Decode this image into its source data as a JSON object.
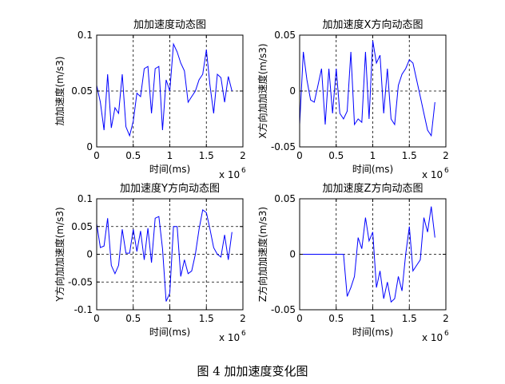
{
  "figure_caption": "图 4  加加速度变化图",
  "colors": {
    "line": "#0000ff",
    "axis": "#000000",
    "background": "#ffffff"
  },
  "chart_data": [
    {
      "type": "line",
      "title": "加加速度动态图",
      "xlabel": "时间(ms)",
      "ylabel": "加加速度(m/s3)",
      "x_exponent": "x 10",
      "x_exponent_power": "6",
      "xlim": [
        0,
        2
      ],
      "ylim": [
        0,
        0.1
      ],
      "xticks": [
        0,
        0.5,
        1,
        1.5,
        2
      ],
      "xtick_labels": [
        "0",
        "0.5",
        "1",
        "1.5",
        "2"
      ],
      "yticks": [
        0,
        0.05,
        0.1
      ],
      "ytick_labels": [
        "0",
        "0.05",
        "0.1"
      ],
      "grid": true,
      "series": [
        {
          "x": [
            0,
            0.05,
            0.1,
            0.15,
            0.2,
            0.25,
            0.3,
            0.35,
            0.4,
            0.45,
            0.5,
            0.55,
            0.6,
            0.65,
            0.7,
            0.75,
            0.8,
            0.85,
            0.9,
            0.95,
            1.0,
            1.05,
            1.1,
            1.15,
            1.2,
            1.25,
            1.3,
            1.35,
            1.4,
            1.45,
            1.5,
            1.55,
            1.6,
            1.65,
            1.7,
            1.75,
            1.8,
            1.85
          ],
          "y": [
            0.055,
            0.04,
            0.015,
            0.065,
            0.017,
            0.035,
            0.03,
            0.065,
            0.018,
            0.01,
            0.023,
            0.048,
            0.045,
            0.07,
            0.072,
            0.03,
            0.07,
            0.072,
            0.015,
            0.06,
            0.05,
            0.092,
            0.085,
            0.075,
            0.068,
            0.04,
            0.045,
            0.05,
            0.06,
            0.065,
            0.087,
            0.055,
            0.03,
            0.065,
            0.062,
            0.04,
            0.063,
            0.05
          ]
        }
      ]
    },
    {
      "type": "line",
      "title": "加加速度X方向动态图",
      "xlabel": "时间(ms)",
      "ylabel": "X方向加加速度(m/s3)",
      "x_exponent": "x 10",
      "x_exponent_power": "6",
      "xlim": [
        0,
        2
      ],
      "ylim": [
        -0.05,
        0.05
      ],
      "xticks": [
        0,
        0.5,
        1,
        1.5,
        2
      ],
      "xtick_labels": [
        "0",
        "0.5",
        "1",
        "1.5",
        "2"
      ],
      "yticks": [
        -0.05,
        0,
        0.05
      ],
      "ytick_labels": [
        "-0.05",
        "0",
        "0.05"
      ],
      "grid": true,
      "series": [
        {
          "x": [
            0,
            0.05,
            0.1,
            0.15,
            0.2,
            0.25,
            0.3,
            0.35,
            0.4,
            0.45,
            0.5,
            0.55,
            0.6,
            0.65,
            0.7,
            0.75,
            0.8,
            0.85,
            0.9,
            0.95,
            1.0,
            1.05,
            1.1,
            1.15,
            1.2,
            1.25,
            1.3,
            1.35,
            1.4,
            1.45,
            1.5,
            1.55,
            1.6,
            1.65,
            1.7,
            1.75,
            1.8,
            1.85
          ],
          "y": [
            -0.03,
            0.035,
            0.01,
            -0.008,
            -0.01,
            0.005,
            0.02,
            -0.03,
            0.02,
            -0.02,
            0.02,
            -0.02,
            -0.025,
            -0.018,
            0.035,
            -0.03,
            -0.025,
            -0.028,
            0.035,
            -0.025,
            0.045,
            0.025,
            0.032,
            -0.02,
            0.02,
            -0.025,
            -0.03,
            0.005,
            0.015,
            0.02,
            0.028,
            0.025,
            0.01,
            -0.005,
            -0.02,
            -0.035,
            -0.04,
            -0.01
          ]
        }
      ]
    },
    {
      "type": "line",
      "title": "加加速度Y方向动态图",
      "xlabel": "时间(ms)",
      "ylabel": "Y方向加加速度(m/s3)",
      "x_exponent": "x 10",
      "x_exponent_power": "6",
      "xlim": [
        0,
        2
      ],
      "ylim": [
        -0.1,
        0.1
      ],
      "xticks": [
        0,
        0.5,
        1,
        1.5,
        2
      ],
      "xtick_labels": [
        "0",
        "0.5",
        "1",
        "1.5",
        "2"
      ],
      "yticks": [
        -0.1,
        -0.05,
        0,
        0.05,
        0.1
      ],
      "ytick_labels": [
        "-0.1",
        "-0.05",
        "0",
        "0.05",
        "0.1"
      ],
      "grid": true,
      "series": [
        {
          "x": [
            0,
            0.05,
            0.1,
            0.15,
            0.2,
            0.25,
            0.3,
            0.35,
            0.4,
            0.45,
            0.5,
            0.55,
            0.6,
            0.65,
            0.7,
            0.75,
            0.8,
            0.85,
            0.9,
            0.95,
            1.0,
            1.05,
            1.1,
            1.15,
            1.2,
            1.25,
            1.3,
            1.35,
            1.4,
            1.45,
            1.5,
            1.55,
            1.6,
            1.65,
            1.7,
            1.75,
            1.8,
            1.85
          ],
          "y": [
            0.055,
            0.012,
            0.015,
            0.065,
            -0.02,
            -0.035,
            -0.02,
            0.045,
            0.002,
            0.002,
            0.045,
            0.005,
            0.042,
            -0.01,
            0.047,
            -0.015,
            0.065,
            0.068,
            0.01,
            -0.085,
            -0.07,
            0.05,
            0.05,
            -0.04,
            -0.01,
            -0.035,
            -0.03,
            0.0,
            0.045,
            0.08,
            0.075,
            0.045,
            0.012,
            0.0,
            -0.005,
            0.035,
            -0.01,
            0.04
          ]
        }
      ]
    },
    {
      "type": "line",
      "title": "加加速度Z方向动态图",
      "xlabel": "时间(ms)",
      "ylabel": "Z方向加加速度(m/s3)",
      "x_exponent": "x 10",
      "x_exponent_power": "6",
      "xlim": [
        0,
        2
      ],
      "ylim": [
        -0.05,
        0.05
      ],
      "xticks": [
        0,
        0.5,
        1,
        1.5,
        2
      ],
      "xtick_labels": [
        "0",
        "0.5",
        "1",
        "1.5",
        "2"
      ],
      "yticks": [
        -0.05,
        0,
        0.05
      ],
      "ytick_labels": [
        "-0.05",
        "0",
        "0.05"
      ],
      "grid": true,
      "series": [
        {
          "x": [
            0,
            0.2,
            0.4,
            0.6,
            0.65,
            0.7,
            0.75,
            0.8,
            0.85,
            0.9,
            0.95,
            1.0,
            1.05,
            1.1,
            1.15,
            1.2,
            1.25,
            1.3,
            1.35,
            1.4,
            1.45,
            1.5,
            1.55,
            1.6,
            1.65,
            1.7,
            1.75,
            1.8,
            1.85
          ],
          "y": [
            0.0,
            0.0,
            0.0,
            0.0,
            -0.038,
            -0.03,
            -0.02,
            0.015,
            0.005,
            0.033,
            0.012,
            0.02,
            -0.03,
            -0.015,
            -0.04,
            -0.025,
            -0.043,
            -0.04,
            -0.02,
            -0.033,
            0.0,
            0.025,
            -0.015,
            -0.01,
            -0.005,
            0.033,
            0.02,
            0.043,
            0.015
          ]
        }
      ]
    }
  ]
}
